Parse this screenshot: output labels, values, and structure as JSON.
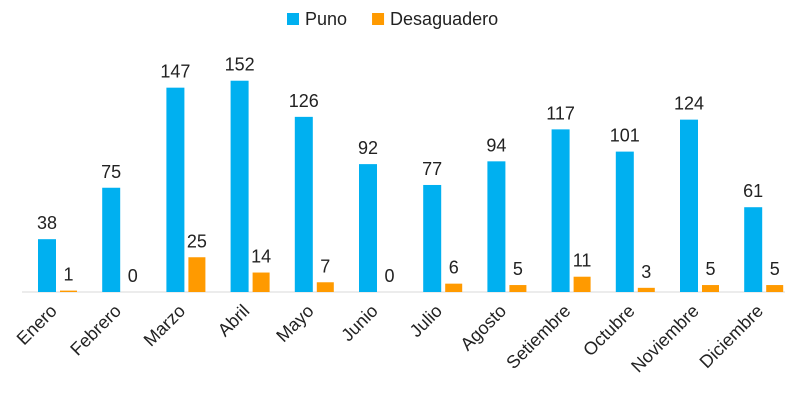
{
  "chart_data": {
    "type": "bar",
    "categories": [
      "Enero",
      "Febrero",
      "Marzo",
      "Abril",
      "Mayo",
      "Junio",
      "Julio",
      "Agosto",
      "Setiembre",
      "Octubre",
      "Noviembre",
      "Diciembre"
    ],
    "series": [
      {
        "name": "Puno",
        "color": "#00b0f0",
        "values": [
          38,
          75,
          147,
          152,
          126,
          92,
          77,
          94,
          117,
          101,
          124,
          61
        ]
      },
      {
        "name": "Desaguadero",
        "color": "#ff9a00",
        "values": [
          1,
          0,
          25,
          14,
          7,
          0,
          6,
          5,
          11,
          3,
          5,
          5
        ]
      }
    ],
    "legend": "top"
  }
}
